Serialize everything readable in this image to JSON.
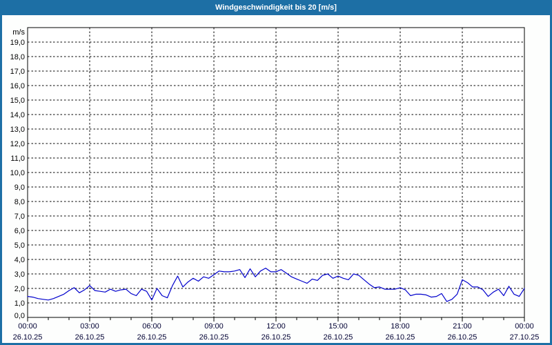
{
  "window": {
    "title": "Windgeschwindigkeit bis 20 [m/s]"
  },
  "colors": {
    "titlebar_bg": "#1d6fa5",
    "titlebar_text": "#ffffff",
    "window_border": "#1d6fa5",
    "page_bg": "#fdfefd",
    "plot_bg": "#ffffff",
    "grid": "#000000",
    "axis": "#000000",
    "series_line": "#0000cc",
    "time_label_color": "#000033",
    "date_label_color": "#000033",
    "value_label_color": "#000000"
  },
  "chart_data": {
    "type": "line",
    "title": "Windgeschwindigkeit bis 20 [m/s]",
    "ylabel": "m/s",
    "xlabel": "",
    "ylim": [
      0,
      20
    ],
    "ytick_step": 1,
    "grid": "dashed",
    "legend": "none",
    "ytick_labels": [
      "0,0",
      "1,0",
      "2,0",
      "3,0",
      "4,0",
      "5,0",
      "6,0",
      "7,0",
      "8,0",
      "9,0",
      "10,0",
      "11,0",
      "12,0",
      "13,0",
      "14,0",
      "15,0",
      "16,0",
      "17,0",
      "18,0",
      "19,0"
    ],
    "xticks": [
      {
        "time": "00:00",
        "date": "26.10.25"
      },
      {
        "time": "03:00",
        "date": "26.10.25"
      },
      {
        "time": "06:00",
        "date": "26.10.25"
      },
      {
        "time": "09:00",
        "date": "26.10.25"
      },
      {
        "time": "12:00",
        "date": "26.10.25"
      },
      {
        "time": "15:00",
        "date": "26.10.25"
      },
      {
        "time": "18:00",
        "date": "26.10.25"
      },
      {
        "time": "21:00",
        "date": "26.10.25"
      },
      {
        "time": "00:00",
        "date": "27.10.25"
      }
    ],
    "minor_xtick_interval_hours": 1,
    "x_span_hours": 24,
    "sample_interval_minutes": 15,
    "series": [
      {
        "name": "Windgeschwindigkeit",
        "unit": "m/s",
        "color": "#0000cc",
        "start": "26.10.25 00:00",
        "end": "27.10.25 00:00",
        "values": [
          1.45,
          1.4,
          1.3,
          1.25,
          1.2,
          1.3,
          1.45,
          1.6,
          1.85,
          2.05,
          1.7,
          1.9,
          2.2,
          1.85,
          1.8,
          1.75,
          1.95,
          1.8,
          1.9,
          1.95,
          1.65,
          1.5,
          1.95,
          1.8,
          1.2,
          2.0,
          1.5,
          1.35,
          2.2,
          2.85,
          2.1,
          2.45,
          2.7,
          2.5,
          2.8,
          2.7,
          2.95,
          3.2,
          3.15,
          3.15,
          3.2,
          3.3,
          2.75,
          3.35,
          2.8,
          3.2,
          3.4,
          3.15,
          3.15,
          3.3,
          3.05,
          2.8,
          2.65,
          2.5,
          2.35,
          2.65,
          2.55,
          2.9,
          3.0,
          2.7,
          2.85,
          2.7,
          2.6,
          3.0,
          2.9,
          2.6,
          2.3,
          2.05,
          2.1,
          1.95,
          1.95,
          1.95,
          2.05,
          1.9,
          1.5,
          1.6,
          1.6,
          1.55,
          1.4,
          1.45,
          1.65,
          1.1,
          1.25,
          1.6,
          2.6,
          2.4,
          2.1,
          2.1,
          1.9,
          1.45,
          1.75,
          1.95,
          1.5,
          2.15,
          1.6,
          1.45,
          2.0
        ]
      }
    ]
  }
}
